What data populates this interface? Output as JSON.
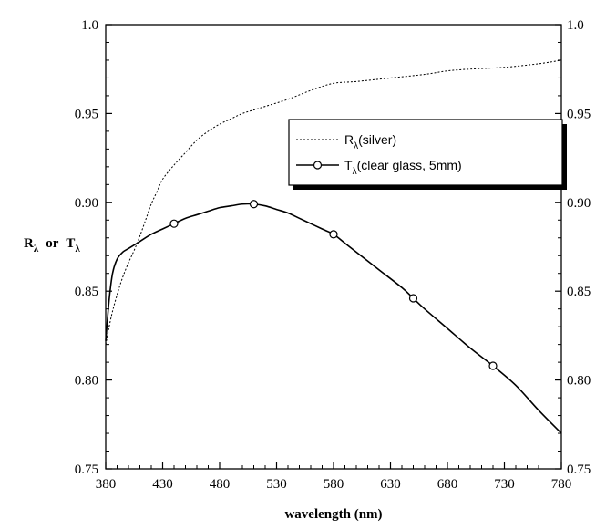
{
  "chart_data": {
    "type": "line",
    "xlabel": "wavelength (nm)",
    "ylabel": {
      "r": "R",
      "or": "or",
      "t": "T",
      "sub": "λ"
    },
    "xlim": [
      380,
      780
    ],
    "ylim": [
      0.75,
      1.0
    ],
    "x_ticks": [
      380,
      430,
      480,
      530,
      580,
      630,
      680,
      730,
      780
    ],
    "y_ticks": [
      0.75,
      0.8,
      0.85,
      0.9,
      0.95,
      1.0
    ],
    "y_tick_labels": [
      "0.75",
      "0.80",
      "0.85",
      "0.90",
      "0.95",
      "1.0"
    ],
    "right_axis_mirrors_left": true,
    "grid": false,
    "legend_position": "upper-right",
    "series": [
      {
        "name": "R(silver)",
        "legend_main": "R",
        "legend_sub": "λ",
        "legend_rest": "(silver)",
        "style": "dotted",
        "color": "#000000",
        "x": [
          380,
          385,
          390,
          395,
          400,
          405,
          410,
          415,
          420,
          425,
          430,
          440,
          450,
          460,
          470,
          480,
          490,
          500,
          510,
          520,
          540,
          560,
          580,
          600,
          630,
          660,
          680,
          700,
          730,
          760,
          780
        ],
        "y": [
          0.82,
          0.836,
          0.848,
          0.858,
          0.866,
          0.873,
          0.881,
          0.89,
          0.899,
          0.906,
          0.913,
          0.921,
          0.928,
          0.935,
          0.94,
          0.944,
          0.947,
          0.95,
          0.952,
          0.954,
          0.958,
          0.963,
          0.967,
          0.968,
          0.97,
          0.972,
          0.974,
          0.975,
          0.976,
          0.978,
          0.98
        ]
      },
      {
        "name": "T(clear glass, 5mm)",
        "legend_main": "T",
        "legend_sub": "λ",
        "legend_rest": "(clear glass, 5mm)",
        "style": "solid",
        "marker": "circle",
        "color": "#000000",
        "x": [
          380,
          383,
          386,
          390,
          395,
          400,
          410,
          420,
          430,
          440,
          450,
          460,
          470,
          480,
          490,
          500,
          510,
          520,
          530,
          540,
          550,
          560,
          570,
          580,
          590,
          600,
          620,
          640,
          650,
          660,
          680,
          700,
          720,
          740,
          760,
          780
        ],
        "y": [
          0.822,
          0.845,
          0.86,
          0.868,
          0.872,
          0.874,
          0.878,
          0.882,
          0.885,
          0.888,
          0.891,
          0.893,
          0.895,
          0.897,
          0.898,
          0.899,
          0.899,
          0.898,
          0.896,
          0.894,
          0.891,
          0.888,
          0.885,
          0.882,
          0.877,
          0.872,
          0.862,
          0.852,
          0.846,
          0.84,
          0.829,
          0.818,
          0.808,
          0.797,
          0.783,
          0.77
        ],
        "markers_x": [
          440,
          510,
          580,
          650,
          720
        ],
        "markers_y": [
          0.888,
          0.899,
          0.882,
          0.846,
          0.808
        ]
      }
    ]
  }
}
